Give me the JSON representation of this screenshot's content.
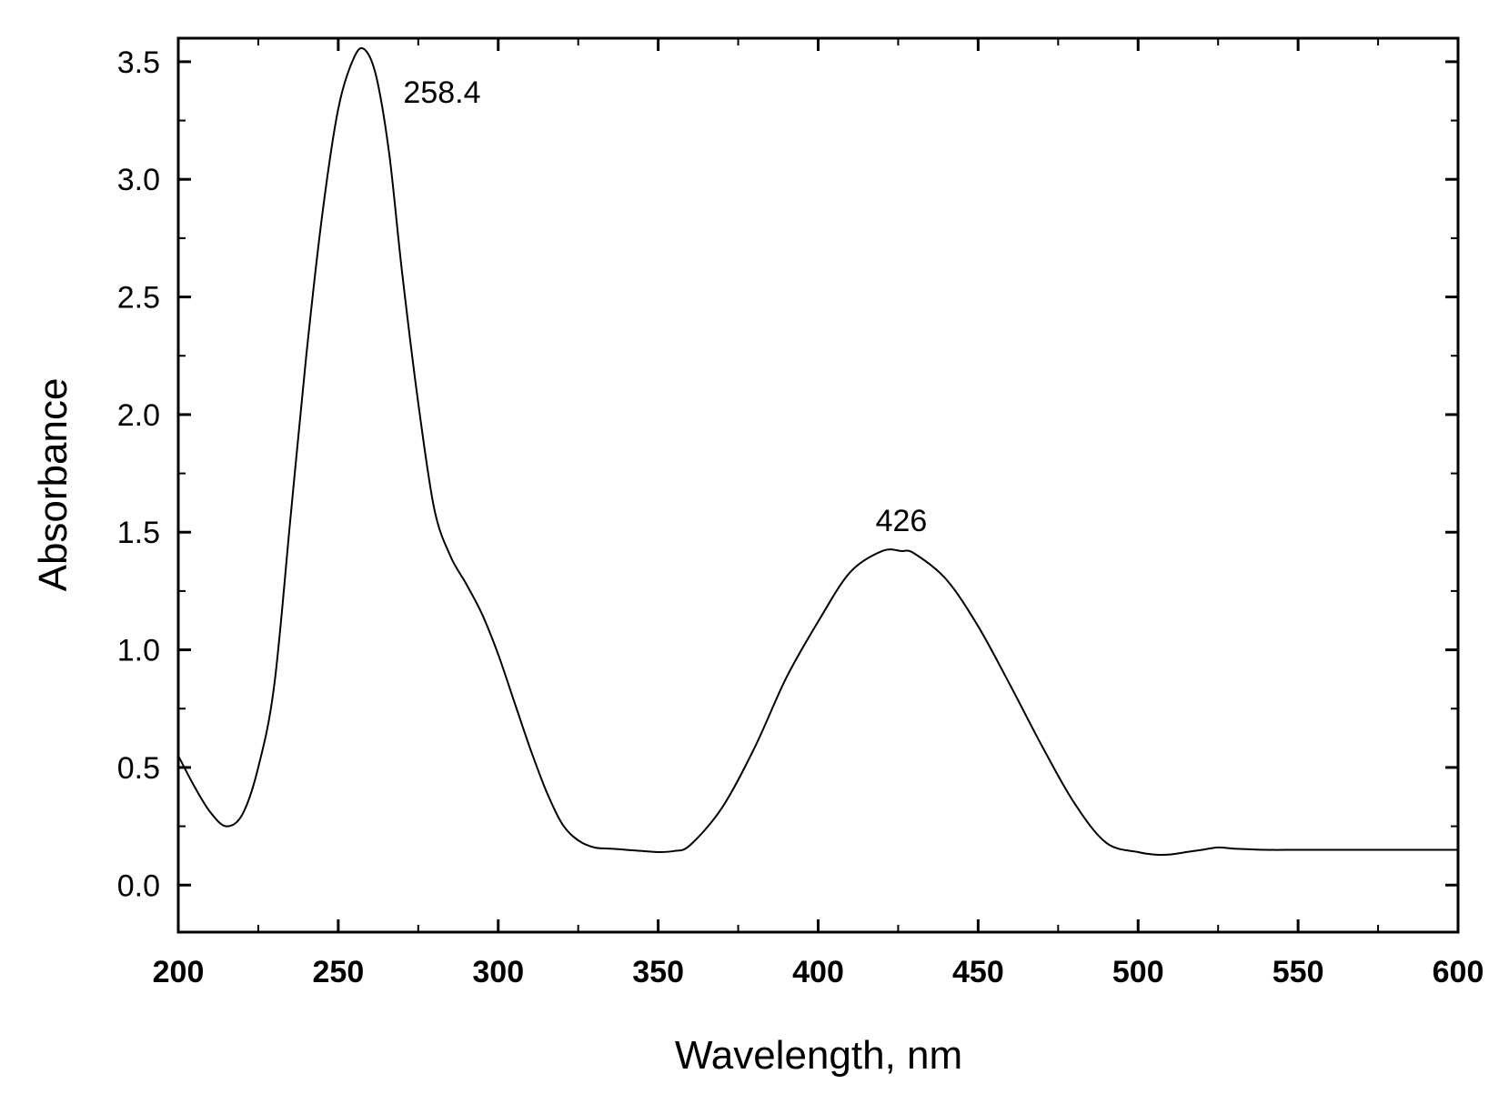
{
  "chart_data": {
    "type": "line",
    "title": "",
    "xlabel": "Wavelength, nm",
    "ylabel": "Absorbance",
    "xlim": [
      200,
      600
    ],
    "ylim": [
      -0.2,
      3.6
    ],
    "xticks": [
      "200",
      "250",
      "300",
      "350",
      "400",
      "450",
      "500",
      "550",
      "600"
    ],
    "yticks": [
      "0.0",
      "0.5",
      "1.0",
      "1.5",
      "2.0",
      "2.5",
      "3.0",
      "3.5"
    ],
    "grid": false,
    "legend": "none",
    "annotations": [
      {
        "text": "258.4",
        "x": 258.4,
        "y": 3.5
      },
      {
        "text": "426",
        "x": 426,
        "y": 1.42
      }
    ],
    "series": [
      {
        "color": "#000000",
        "x": [
          200,
          205,
          210,
          215,
          220,
          225,
          230,
          235,
          240,
          245,
          250,
          255,
          258.4,
          262,
          266,
          270,
          275,
          280,
          285,
          290,
          295,
          300,
          305,
          310,
          315,
          320,
          325,
          330,
          335,
          340,
          345,
          350,
          355,
          360,
          370,
          380,
          390,
          400,
          410,
          420,
          426,
          430,
          440,
          450,
          460,
          470,
          480,
          490,
          500,
          505,
          510,
          515,
          520,
          525,
          530,
          540,
          550,
          560,
          570,
          580,
          590,
          600
        ],
        "y": [
          0.55,
          0.42,
          0.31,
          0.25,
          0.3,
          0.5,
          0.85,
          1.55,
          2.25,
          2.85,
          3.3,
          3.52,
          3.55,
          3.43,
          3.1,
          2.6,
          2.05,
          1.6,
          1.4,
          1.28,
          1.15,
          0.98,
          0.78,
          0.58,
          0.4,
          0.26,
          0.19,
          0.16,
          0.155,
          0.15,
          0.145,
          0.14,
          0.145,
          0.17,
          0.33,
          0.58,
          0.88,
          1.12,
          1.33,
          1.42,
          1.42,
          1.41,
          1.3,
          1.1,
          0.85,
          0.59,
          0.35,
          0.18,
          0.14,
          0.13,
          0.13,
          0.14,
          0.15,
          0.16,
          0.155,
          0.15,
          0.15,
          0.15,
          0.15,
          0.15,
          0.15,
          0.15
        ]
      }
    ]
  }
}
